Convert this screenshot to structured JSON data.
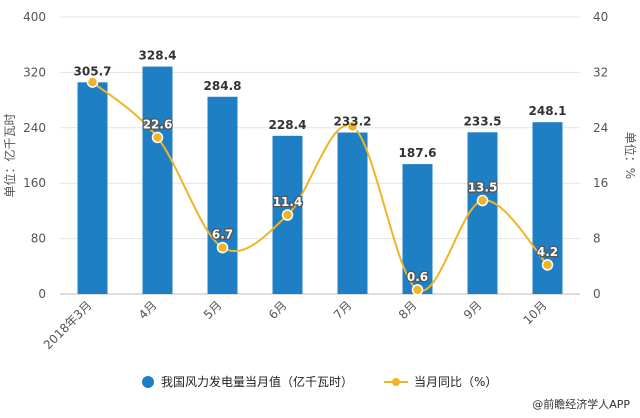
{
  "chart_data": {
    "type": "bar+line",
    "categories": [
      "2018年3月",
      "4月",
      "5月",
      "6月",
      "7月",
      "8月",
      "9月",
      "10月"
    ],
    "series": [
      {
        "name": "我国风力发电量当月值（亿千瓦时）",
        "type": "bar",
        "axis": "left",
        "values": [
          305.7,
          328.4,
          284.8,
          228.4,
          233.2,
          187.6,
          233.5,
          248.1
        ],
        "labels": [
          "305.7",
          "328.4",
          "284.8",
          "228.4",
          "233.2",
          "187.6",
          "233.5",
          "248.1"
        ],
        "color": "#1f7fc4"
      },
      {
        "name": "当月同比（%）",
        "type": "line",
        "axis": "right",
        "values": [
          30.6,
          22.6,
          6.7,
          11.4,
          24.2,
          0.6,
          13.5,
          4.2
        ],
        "labels": [
          "",
          "22.6",
          "6.7",
          "11.4",
          "",
          "0.6",
          "13.5",
          "4.2"
        ],
        "color": "#f0b429"
      }
    ],
    "ylabel_left": "单位：亿千瓦时",
    "ylabel_right": "单位：%",
    "ylim_left": [
      0,
      400
    ],
    "yticks_left": [
      "0",
      "80",
      "160",
      "240",
      "320",
      "400"
    ],
    "ylim_right": [
      0,
      40
    ],
    "yticks_right": [
      "0",
      "8",
      "16",
      "24",
      "32",
      "40"
    ],
    "grid": true,
    "legend_position": "bottom"
  },
  "source": "@前瞻经济学人APP"
}
